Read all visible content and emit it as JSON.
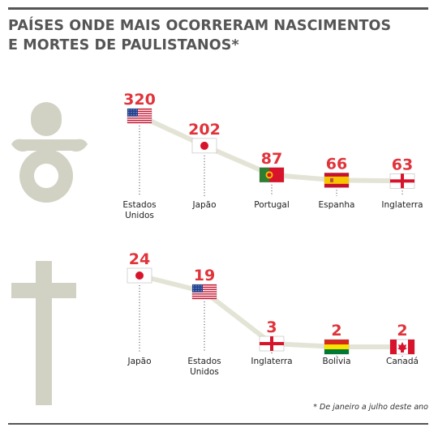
{
  "title_line1": "PAÍSES ONDE MAIS OCORRERAM NASCIMENTOS",
  "title_line2": "E MORTES DE PAULISTANOS*",
  "footnote": "* De janeiro a julho deste ano",
  "colors": {
    "value": "#e0333a",
    "line": "#e4e4d6",
    "icon": "#d2d2c4",
    "rule": "#555555"
  },
  "chart_data": [
    {
      "type": "line",
      "icon": "pacifier-icon",
      "categories": [
        "Estados Unidos",
        "Japão",
        "Portugal",
        "Espanha",
        "Inglaterra"
      ],
      "category_lines": [
        [
          "Estados",
          "Unidos"
        ],
        [
          "Japão"
        ],
        [
          "Portugal"
        ],
        [
          "Espanha"
        ],
        [
          "Inglaterra"
        ]
      ],
      "flags": [
        "usa-flag-icon",
        "japan-flag-icon",
        "portugal-flag-icon",
        "spain-flag-icon",
        "england-flag-icon"
      ],
      "values": [
        320,
        202,
        87,
        66,
        63
      ],
      "labels": [
        "320",
        "202",
        "87",
        "66",
        "63"
      ]
    },
    {
      "type": "line",
      "icon": "cross-icon",
      "categories": [
        "Japão",
        "Estados Unidos",
        "Inglaterra",
        "Bolívia",
        "Canadá"
      ],
      "category_lines": [
        [
          "Japão"
        ],
        [
          "Estados",
          "Unidos"
        ],
        [
          "Inglaterra"
        ],
        [
          "Bolívia"
        ],
        [
          "Canadá"
        ]
      ],
      "flags": [
        "japan-flag-icon",
        "usa-flag-icon",
        "england-flag-icon",
        "bolivia-flag-icon",
        "canada-flag-icon"
      ],
      "values": [
        24,
        19,
        3,
        2,
        2
      ],
      "labels": [
        "24",
        "19",
        "3",
        "2",
        "2"
      ]
    }
  ]
}
